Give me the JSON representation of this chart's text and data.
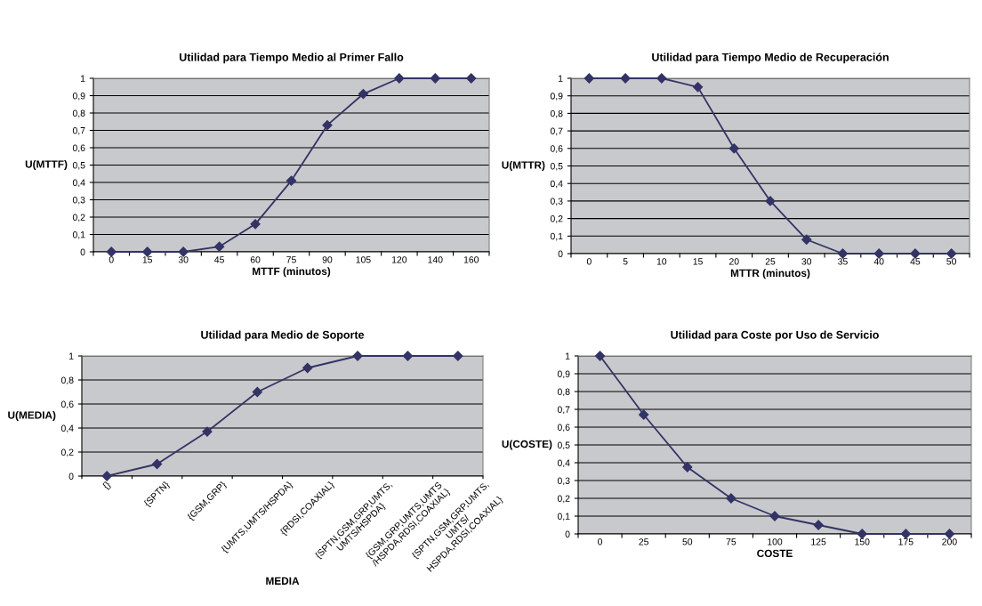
{
  "chart_data": [
    {
      "type": "line",
      "title": "Utilidad para Tiempo Medio al Primer Fallo",
      "xlabel": "MTTF (minutos)",
      "ylabel": "U(MTTF)",
      "categories": [
        "0",
        "15",
        "30",
        "45",
        "60",
        "75",
        "90",
        "105",
        "120",
        "140",
        "160"
      ],
      "series": [
        {
          "color": "#333366",
          "values": [
            0,
            0,
            0,
            0.03,
            0.16,
            0.41,
            0.73,
            0.91,
            1,
            1,
            1
          ]
        }
      ],
      "ylim": [
        0,
        1
      ],
      "yticks": [
        0,
        {
          "value": 0.1,
          "label": "0,1"
        },
        {
          "value": 0.2,
          "label": "0,2"
        },
        {
          "value": 0.3,
          "label": "0,3"
        },
        {
          "value": 0.4,
          "label": "0,4"
        },
        {
          "value": 0.5,
          "label": "0,5"
        },
        {
          "value": 0.6,
          "label": "0,6"
        },
        {
          "value": 0.7,
          "label": "0,7"
        },
        {
          "value": 0.8,
          "label": "0,8"
        },
        {
          "value": 0.9,
          "label": "0,9"
        },
        1
      ],
      "grid": "y",
      "marker": "diamond",
      "line_style": "solid"
    },
    {
      "type": "line",
      "title": "Utilidad para Tiempo Medio de Recuperación",
      "xlabel": "MTTR (minutos)",
      "ylabel": "U(MTTR)",
      "categories": [
        "0",
        "5",
        "10",
        "15",
        "20",
        "25",
        "30",
        "35",
        "40",
        "45",
        "50"
      ],
      "series": [
        {
          "color": "#333366",
          "values": [
            1,
            1,
            1,
            0.95,
            0.6,
            0.3,
            0.08,
            0,
            0,
            0,
            0
          ]
        }
      ],
      "ylim": [
        0,
        1
      ],
      "yticks": [
        0,
        {
          "value": 0.1,
          "label": "0,1"
        },
        {
          "value": 0.2,
          "label": "0,2"
        },
        {
          "value": 0.3,
          "label": "0,3"
        },
        {
          "value": 0.4,
          "label": "0,4"
        },
        {
          "value": 0.5,
          "label": "0,5"
        },
        {
          "value": 0.6,
          "label": "0,6"
        },
        {
          "value": 0.7,
          "label": "0,7"
        },
        {
          "value": 0.8,
          "label": "0,8"
        },
        {
          "value": 0.9,
          "label": "0,9"
        },
        1
      ],
      "grid": "y",
      "marker": "diamond",
      "line_style": "solid"
    },
    {
      "type": "line",
      "title": "Utilidad para Medio de Soporte",
      "xlabel": "MEDIA",
      "ylabel": "U(MEDIA)",
      "categories": [
        "{}",
        "{SPTN}",
        "{GSM,GRP}",
        "{UMTS,UMTS/HSPDA}",
        "{RDSI,COAXIAL}",
        "{SPTN,GSM,GRP,UMTS,\nUMTS/HSPDA}",
        "{GSM,GRP,UMTS,UMTS\n/HSPDA,RDSI,COAXIAL}",
        "{SPTN,GSM,GRP,UMTS,\nUMTS/\nHSPDA,RDSI,COAXIAL}"
      ],
      "series": [
        {
          "color": "#333366",
          "values": [
            0,
            0.1,
            0.37,
            0.7,
            0.9,
            1,
            1,
            1
          ]
        }
      ],
      "ylim": [
        0,
        1
      ],
      "yticks": [
        0,
        {
          "value": 0.2,
          "label": "0,2"
        },
        {
          "value": 0.4,
          "label": "0,4"
        },
        {
          "value": 0.6,
          "label": "0,6"
        },
        {
          "value": 0.8,
          "label": "0,8"
        },
        1
      ],
      "grid": "y",
      "marker": "diamond",
      "line_style": "solid"
    },
    {
      "type": "line",
      "title": "Utilidad para Coste por Uso de Servicio",
      "xlabel": "COSTE",
      "ylabel": "U(COSTE)",
      "categories": [
        "0",
        "25",
        "50",
        "75",
        "100",
        "125",
        "150",
        "175",
        "200"
      ],
      "series": [
        {
          "color": "#333366",
          "values": [
            1,
            0.67,
            0.375,
            0.2,
            0.1,
            0.05,
            0,
            0,
            0
          ]
        }
      ],
      "ylim": [
        0,
        1
      ],
      "yticks": [
        0,
        {
          "value": 0.1,
          "label": "0,1"
        },
        {
          "value": 0.2,
          "label": "0,2"
        },
        {
          "value": 0.3,
          "label": "0,3"
        },
        {
          "value": 0.4,
          "label": "0,4"
        },
        {
          "value": 0.5,
          "label": "0,5"
        },
        {
          "value": 0.6,
          "label": "0,6"
        },
        {
          "value": 0.7,
          "label": "0,7"
        },
        {
          "value": 0.8,
          "label": "0,8"
        },
        {
          "value": 0.9,
          "label": "0,9"
        },
        1
      ],
      "grid": "y",
      "marker": "diamond",
      "line_style": "solid"
    }
  ]
}
